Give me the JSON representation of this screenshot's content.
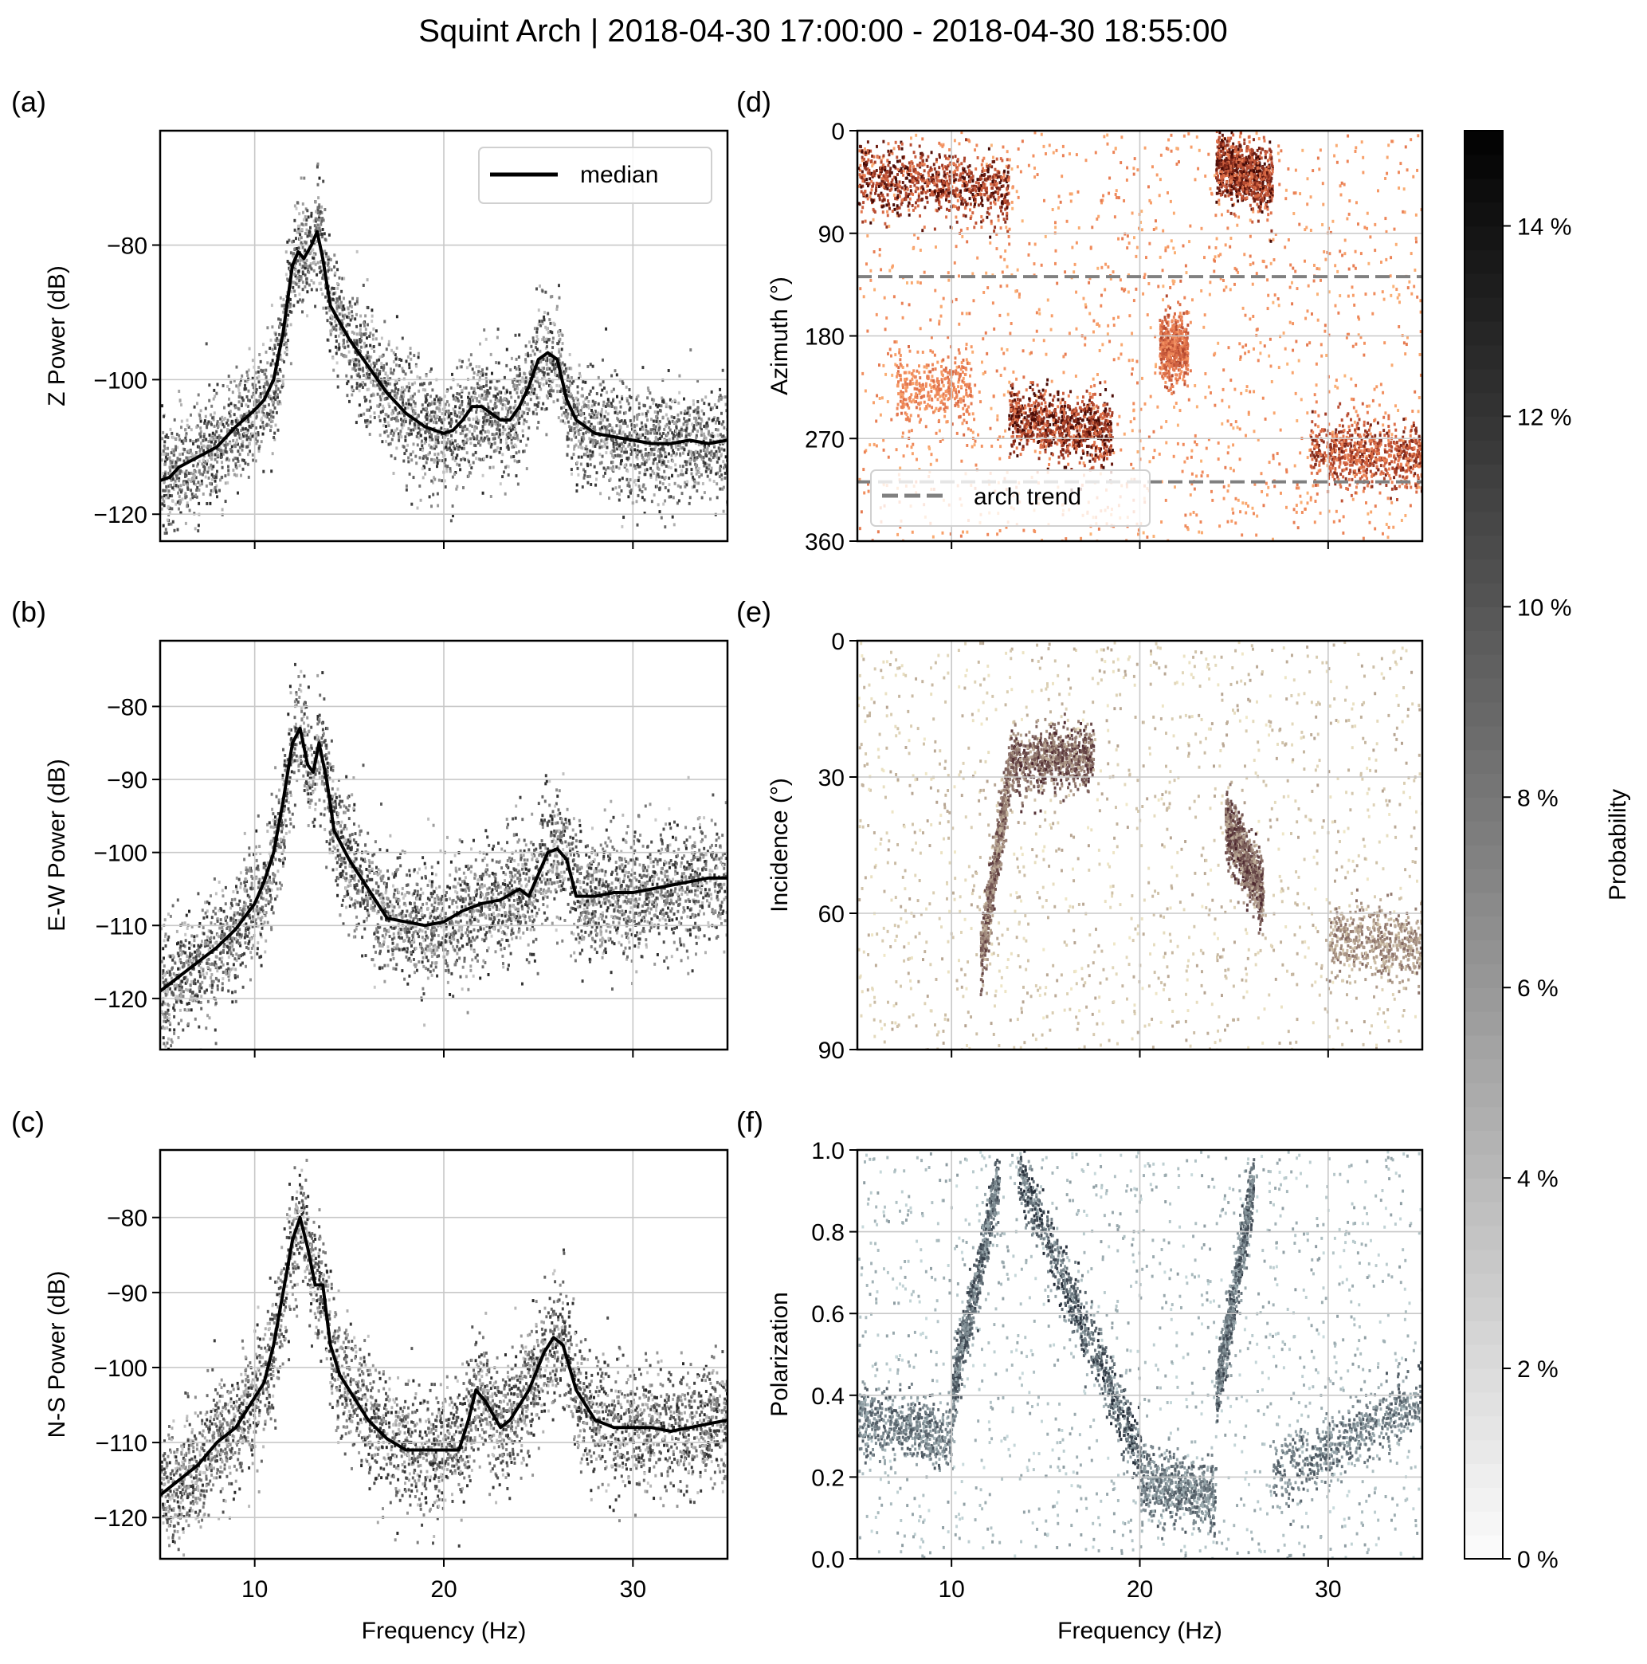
{
  "title": "Squint Arch | 2018-04-30 17:00:00 - 2018-04-30 18:55:00",
  "chart_data": [
    {
      "id": "a",
      "panel_label": "(a)",
      "type": "heatmap",
      "overlay_type": "line",
      "ylabel": "Z Power (dB)",
      "xlabel": "",
      "xlim": [
        5,
        35
      ],
      "ylim": [
        -124,
        -63
      ],
      "xticks": [
        10,
        20,
        30
      ],
      "xtick_labels": [
        "",
        "",
        ""
      ],
      "yticks": [
        -80,
        -100,
        -120
      ],
      "ytick_labels": [
        "−80",
        "−100",
        "−120"
      ],
      "grid": true,
      "legend": {
        "entries": [
          "median"
        ],
        "placement": "top-right"
      },
      "median": {
        "x": [
          5,
          5.5,
          6,
          7,
          8,
          9,
          10,
          10.5,
          11,
          11.5,
          12,
          12.3,
          12.6,
          13,
          13.3,
          13.6,
          14,
          15,
          16,
          17,
          18,
          19,
          20,
          20.5,
          21,
          21.5,
          22,
          23,
          23.5,
          24,
          24.5,
          25,
          25.5,
          26,
          26.5,
          27,
          28,
          29,
          30,
          31,
          32,
          33,
          34,
          35
        ],
        "y": [
          -115,
          -114.5,
          -113,
          -111.5,
          -110,
          -107,
          -104.5,
          -103,
          -100,
          -93,
          -83,
          -81,
          -82,
          -80,
          -78,
          -82,
          -89,
          -94,
          -98,
          -102,
          -105,
          -107,
          -108,
          -107.5,
          -106,
          -104,
          -104,
          -106,
          -106,
          -104,
          -101,
          -97,
          -96,
          -97,
          -103,
          -106,
          -108,
          -108.5,
          -109,
          -109.5,
          -109.5,
          -109,
          -109.5,
          -109
        ]
      },
      "density_cmap": "Greys"
    },
    {
      "id": "b",
      "panel_label": "(b)",
      "type": "heatmap",
      "overlay_type": "line",
      "ylabel": "E-W Power (dB)",
      "xlabel": "",
      "xlim": [
        5,
        35
      ],
      "ylim": [
        -127,
        -71
      ],
      "xticks": [
        10,
        20,
        30
      ],
      "xtick_labels": [
        "",
        "",
        ""
      ],
      "yticks": [
        -80,
        -90,
        -100,
        -110,
        -120
      ],
      "ytick_labels": [
        "−80",
        "−90",
        "−100",
        "−110",
        "−120"
      ],
      "grid": true,
      "median": {
        "x": [
          5,
          5.5,
          6,
          7,
          8,
          9,
          10,
          10.5,
          11,
          11.5,
          12,
          12.4,
          12.8,
          13.1,
          13.4,
          13.8,
          14.2,
          15,
          16,
          17,
          18,
          19,
          20,
          21,
          22,
          23,
          24,
          24.5,
          25,
          25.5,
          26,
          26.5,
          27,
          28,
          29,
          30,
          31,
          32,
          33,
          34,
          35
        ],
        "y": [
          -119,
          -118,
          -117,
          -115,
          -113,
          -110.5,
          -107,
          -104,
          -100,
          -93,
          -85,
          -83,
          -88,
          -89,
          -85,
          -90,
          -97,
          -101,
          -105,
          -109,
          -109.5,
          -110,
          -109.5,
          -108,
          -107,
          -106.5,
          -105,
          -106,
          -103,
          -100,
          -99.5,
          -101,
          -106,
          -106,
          -105.5,
          -105.5,
          -105,
          -104.5,
          -104,
          -103.5,
          -103.5
        ]
      },
      "density_cmap": "Greys"
    },
    {
      "id": "c",
      "panel_label": "(c)",
      "type": "heatmap",
      "overlay_type": "line",
      "ylabel": "N-S Power (dB)",
      "xlabel": "Frequency (Hz)",
      "xlim": [
        5,
        35
      ],
      "ylim": [
        -125.5,
        -71
      ],
      "xticks": [
        10,
        20,
        30
      ],
      "xtick_labels": [
        "10",
        "20",
        "30"
      ],
      "yticks": [
        -80,
        -90,
        -100,
        -110,
        -120
      ],
      "ytick_labels": [
        "−80",
        "−90",
        "−100",
        "−110",
        "−120"
      ],
      "grid": true,
      "median": {
        "x": [
          5,
          5.5,
          6,
          7,
          8,
          9,
          10,
          10.5,
          11,
          11.5,
          12,
          12.4,
          12.8,
          13.2,
          13.6,
          14,
          14.5,
          15,
          16,
          17,
          18,
          19,
          20,
          20.8,
          21.3,
          21.7,
          22.2,
          23,
          23.5,
          24.5,
          25.3,
          25.8,
          26.3,
          27,
          28,
          29,
          30,
          31,
          32,
          33,
          34,
          35
        ],
        "y": [
          -117,
          -116,
          -115,
          -113,
          -110,
          -108,
          -104,
          -102,
          -97,
          -90,
          -83,
          -80,
          -84,
          -89,
          -89,
          -97,
          -101,
          -103,
          -107,
          -109.5,
          -111,
          -111,
          -111,
          -111,
          -107,
          -103,
          -104.5,
          -108,
          -107,
          -103,
          -98,
          -96,
          -97,
          -103,
          -107,
          -108,
          -108,
          -108,
          -108.5,
          -108,
          -107.5,
          -107
        ]
      },
      "density_cmap": "Greys"
    },
    {
      "id": "d",
      "panel_label": "(d)",
      "type": "heatmap",
      "ylabel": "Azimuth (°)",
      "xlabel": "",
      "xlim": [
        5,
        35
      ],
      "ylim": [
        0,
        360
      ],
      "y_inverted": true,
      "xticks": [
        10,
        20,
        30
      ],
      "xtick_labels": [
        "",
        "",
        ""
      ],
      "yticks": [
        0,
        90,
        180,
        270,
        360
      ],
      "ytick_labels": [
        "0",
        "90",
        "180",
        "270",
        "360"
      ],
      "grid": true,
      "reference_lines": [
        {
          "name": "arch trend",
          "y": [
            128,
            308
          ],
          "style": "dashed",
          "color": "#808080"
        }
      ],
      "legend": {
        "entries": [
          "arch trend"
        ],
        "placement": "lower-left"
      },
      "density_cmap": "Oranges",
      "clusters": [
        {
          "x_range": [
            5,
            13
          ],
          "y_center": [
            40,
            50
          ],
          "strength": 1.0
        },
        {
          "x_range": [
            7,
            11
          ],
          "y_center": [
            225,
            225
          ],
          "strength": 0.4
        },
        {
          "x_range": [
            13,
            18.5
          ],
          "y_center": [
            250,
            265
          ],
          "strength": 1.0
        },
        {
          "x_range": [
            21,
            22.5
          ],
          "y_center": [
            190,
            190
          ],
          "strength": 0.6
        },
        {
          "x_range": [
            24,
            27
          ],
          "y_center": [
            25,
            45
          ],
          "strength": 1.0
        },
        {
          "x_range": [
            29,
            35
          ],
          "y_center": [
            280,
            285
          ],
          "strength": 0.8
        }
      ]
    },
    {
      "id": "e",
      "panel_label": "(e)",
      "type": "heatmap",
      "ylabel": "Incidence (°)",
      "xlabel": "",
      "xlim": [
        5,
        35
      ],
      "ylim": [
        0,
        90
      ],
      "y_inverted": true,
      "xticks": [
        10,
        20,
        30
      ],
      "xtick_labels": [
        "",
        "",
        ""
      ],
      "yticks": [
        0,
        30,
        60,
        90
      ],
      "ytick_labels": [
        "0",
        "30",
        "60",
        "90"
      ],
      "grid": true,
      "density_cmap": "Pink",
      "clusters": [
        {
          "x_range": [
            11.5,
            13
          ],
          "y_center": [
            70,
            30
          ],
          "strength": 0.8
        },
        {
          "x_range": [
            13,
            17.5
          ],
          "y_center": [
            27,
            25
          ],
          "strength": 0.9
        },
        {
          "x_range": [
            24.5,
            26.5
          ],
          "y_center": [
            40,
            55
          ],
          "strength": 0.9
        },
        {
          "x_range": [
            30,
            35
          ],
          "y_center": [
            65,
            67
          ],
          "strength": 0.6
        }
      ]
    },
    {
      "id": "f",
      "panel_label": "(f)",
      "type": "heatmap",
      "ylabel": "Polarization",
      "xlabel": "Frequency (Hz)",
      "xlim": [
        5,
        35
      ],
      "ylim": [
        0.0,
        1.0
      ],
      "xticks": [
        10,
        20,
        30
      ],
      "xtick_labels": [
        "10",
        "20",
        "30"
      ],
      "yticks": [
        0.0,
        0.2,
        0.4,
        0.6,
        0.8,
        1.0
      ],
      "ytick_labels": [
        "0.0",
        "0.2",
        "0.4",
        "0.6",
        "0.8",
        "1.0"
      ],
      "grid": true,
      "density_cmap": "Bone",
      "clusters": [
        {
          "x_range": [
            5,
            10
          ],
          "y_center": [
            0.35,
            0.3
          ],
          "strength": 0.7
        },
        {
          "x_range": [
            10,
            12.5
          ],
          "y_center": [
            0.4,
            0.95
          ],
          "strength": 0.8
        },
        {
          "x_range": [
            13.5,
            20
          ],
          "y_center": [
            0.95,
            0.25
          ],
          "strength": 0.9
        },
        {
          "x_range": [
            20,
            24
          ],
          "y_center": [
            0.2,
            0.15
          ],
          "strength": 0.7
        },
        {
          "x_range": [
            24,
            26
          ],
          "y_center": [
            0.4,
            0.93
          ],
          "strength": 0.8
        },
        {
          "x_range": [
            27,
            35
          ],
          "y_center": [
            0.2,
            0.4
          ],
          "strength": 0.7
        }
      ]
    }
  ],
  "colorbar": {
    "label": "Probability",
    "range": [
      0,
      15
    ],
    "ticks": [
      0,
      2,
      4,
      6,
      8,
      10,
      12,
      14
    ],
    "tick_labels": [
      "0 %",
      "2 %",
      "4 %",
      "6 %",
      "8 %",
      "10 %",
      "12 %",
      "14 %"
    ],
    "cmap": "Greys"
  }
}
